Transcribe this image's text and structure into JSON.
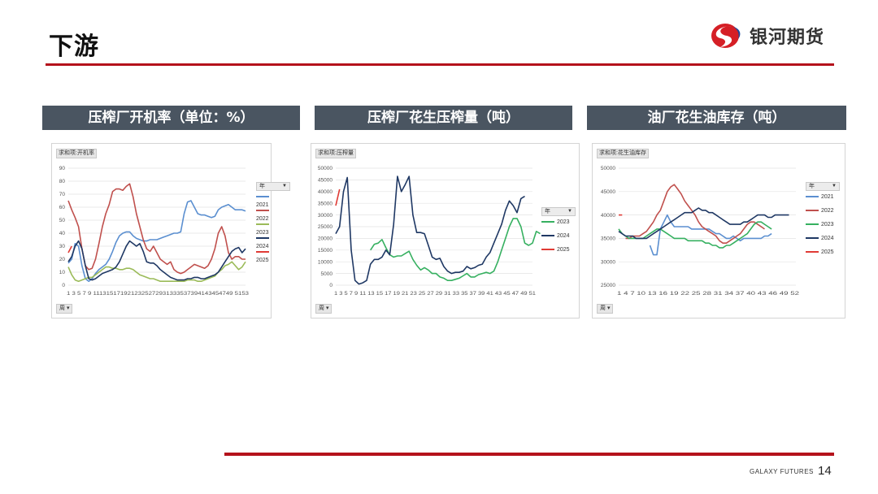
{
  "page": {
    "title": "下游",
    "page_number": "14"
  },
  "brand": {
    "name": "银河期货",
    "footer": "GALAXY FUTURES",
    "mark_colors": [
      "#1c4a9c",
      "#d51f26"
    ]
  },
  "colors": {
    "2021": "#5b8fd0",
    "2022": "#c0504d",
    "2023": "#36b060",
    "2023_light": "#9bbb59",
    "2024": "#1f3864",
    "2025": "#e03b35"
  },
  "panels": [
    {
      "header": "压榨厂开机率（单位：%）"
    },
    {
      "header": "压榨厂花生压榨量（吨）"
    },
    {
      "header": "油厂花生油库存（吨）"
    }
  ],
  "chart_data": [
    {
      "type": "line",
      "field_tag": "求和项:开机率",
      "axis_button": "周",
      "legend_title": "年",
      "ylim": [
        0,
        90
      ],
      "y_ticks": [
        "0",
        "10",
        "20",
        "30",
        "40",
        "50",
        "60",
        "70",
        "80",
        "90"
      ],
      "x_ticks": "1 3 5 7 9 1113151719212325272931333537394143454749 5153",
      "series": [
        {
          "name": "2021",
          "color": "#5b8fd0",
          "start": 1,
          "values": [
            17,
            20,
            32,
            30,
            15,
            5,
            3,
            5,
            9,
            12,
            14,
            16,
            20,
            26,
            33,
            38,
            40,
            41,
            41,
            38,
            36,
            35,
            34,
            34,
            35,
            35,
            35,
            36,
            37,
            38,
            39,
            40,
            40,
            41,
            55,
            64,
            65,
            60,
            55,
            54,
            54,
            53,
            52,
            53,
            58,
            60,
            61,
            62,
            60,
            58,
            58,
            58,
            57
          ]
        },
        {
          "name": "2022",
          "color": "#c0504d",
          "start": 1,
          "values": [
            65,
            58,
            52,
            45,
            28,
            15,
            12,
            13,
            20,
            32,
            45,
            55,
            62,
            72,
            74,
            74,
            73,
            76,
            78,
            68,
            55,
            45,
            35,
            28,
            26,
            30,
            25,
            20,
            18,
            16,
            18,
            12,
            10,
            9,
            10,
            12,
            14,
            16,
            15,
            14,
            13,
            15,
            20,
            28,
            40,
            45,
            38,
            25,
            20,
            22,
            22,
            20,
            20
          ]
        },
        {
          "name": "2023",
          "color": "#9bbb59",
          "start": 1,
          "values": [
            14,
            8,
            4,
            3,
            4,
            5,
            6,
            6,
            8,
            10,
            12,
            14,
            14,
            13,
            13,
            12,
            12,
            13,
            13,
            12,
            10,
            8,
            7,
            6,
            5,
            5,
            4,
            3,
            3,
            3,
            3,
            3,
            3,
            3,
            3,
            4,
            4,
            4,
            3,
            3,
            4,
            5,
            6,
            7,
            10,
            12,
            15,
            16,
            18,
            15,
            12,
            14,
            18
          ]
        },
        {
          "name": "2024",
          "color": "#1f3864",
          "start": 1,
          "values": [
            18,
            22,
            30,
            34,
            28,
            15,
            5,
            4,
            5,
            7,
            9,
            10,
            11,
            12,
            14,
            18,
            24,
            30,
            34,
            32,
            30,
            32,
            26,
            18,
            17,
            17,
            15,
            12,
            10,
            8,
            6,
            5,
            4,
            4,
            4,
            5,
            5,
            6,
            6,
            5,
            5,
            6,
            7,
            8,
            10,
            14,
            18,
            22,
            26,
            28,
            29,
            25,
            28
          ]
        },
        {
          "name": "2025",
          "color": "#e03b35",
          "start": 1,
          "values": [
            25,
            30
          ]
        }
      ]
    },
    {
      "type": "line",
      "field_tag": "求和项:压榨量",
      "axis_button": "周",
      "legend_title": "年",
      "ylim": [
        0,
        50000
      ],
      "y_ticks": [
        "0",
        "5000",
        "10000",
        "15000",
        "20000",
        "25000",
        "30000",
        "35000",
        "40000",
        "45000",
        "50000"
      ],
      "x_ticks": "1 3 5 7 9 11 13 15 17 19 21 23 25 27 29 31 33 35 37 39 41 43 45 47 49 51",
      "series": [
        {
          "name": "2023",
          "color": "#36b060",
          "start": 10,
          "values": [
            15000,
            17500,
            18000,
            19500,
            16000,
            13000,
            12000,
            12500,
            12500,
            13500,
            14500,
            11000,
            8500,
            6500,
            7500,
            6500,
            5000,
            5000,
            3500,
            3000,
            2000,
            2000,
            2500,
            3000,
            4000,
            5000,
            3500,
            3500,
            4500,
            5000,
            5500,
            5000,
            6000,
            10000,
            15000,
            20000,
            25000,
            28500,
            28500,
            25000,
            18000,
            17000,
            18000,
            23000,
            22000
          ]
        },
        {
          "name": "2024",
          "color": "#1f3864",
          "start": 1,
          "values": [
            22000,
            25000,
            40000,
            46000,
            15000,
            2000,
            500,
            1000,
            2000,
            9000,
            11000,
            11000,
            12000,
            15000,
            13000,
            26000,
            46500,
            40000,
            43000,
            46500,
            30000,
            22500,
            22500,
            22000,
            17000,
            12000,
            11000,
            11500,
            8000,
            6000,
            5000,
            5500,
            5500,
            6000,
            8000,
            7000,
            7500,
            8500,
            9000,
            12000,
            14000,
            18000,
            22000,
            26000,
            32000,
            36000,
            34000,
            31000,
            37000,
            38000
          ]
        },
        {
          "name": "2025",
          "color": "#e03b35",
          "start": 1,
          "values": [
            34000,
            41000
          ]
        }
      ]
    },
    {
      "type": "line",
      "field_tag": "求和项:花生油库存",
      "axis_button": "周",
      "legend_title": "年",
      "ylim": [
        25000,
        50000
      ],
      "y_ticks": [
        "25000",
        "30000",
        "35000",
        "40000",
        "45000",
        "50000"
      ],
      "x_ticks": "1 4 7 10 13 16 19 22 25 28 31 34 37 40 43 46 49 52",
      "series": [
        {
          "name": "2021",
          "color": "#5b8fd0",
          "start": 10,
          "values": [
            33500,
            31500,
            31500,
            37000,
            38500,
            40000,
            38500,
            37500,
            37500,
            37500,
            37500,
            37500,
            37000,
            37000,
            37000,
            37000,
            37000,
            37000,
            36500,
            36000,
            36000,
            35500,
            35000,
            35000,
            35500,
            35000,
            34500,
            35000,
            35000,
            35000,
            35000,
            35000,
            35000,
            35500,
            35500,
            36000
          ]
        },
        {
          "name": "2022",
          "color": "#c0504d",
          "start": 3,
          "values": [
            35000,
            35000,
            35500,
            35500,
            35500,
            36000,
            36500,
            37500,
            38500,
            40000,
            41000,
            43000,
            45000,
            46000,
            46500,
            45500,
            44500,
            43000,
            42000,
            41000,
            40000,
            38500,
            37500,
            37000,
            36500,
            36000,
            35500,
            34500,
            34000,
            34000,
            34500,
            35000,
            35500,
            36000,
            37000,
            38000,
            38500,
            38500,
            38000,
            37500,
            37000
          ]
        },
        {
          "name": "2023",
          "color": "#36b060",
          "start": 1,
          "values": [
            37000,
            36000,
            35500,
            35000,
            35000,
            35000,
            35000,
            35000,
            35500,
            36000,
            36500,
            37000,
            37000,
            36500,
            36000,
            35500,
            35000,
            35000,
            35000,
            35000,
            34500,
            34500,
            34500,
            34500,
            34500,
            34000,
            34000,
            33500,
            33500,
            33000,
            33000,
            33500,
            33500,
            34000,
            34500,
            35000,
            35500,
            36000,
            37000,
            38000,
            38500,
            38500,
            38000,
            37500,
            37000
          ]
        },
        {
          "name": "2024",
          "color": "#1f3864",
          "start": 1,
          "values": [
            36500,
            36000,
            35500,
            35500,
            35500,
            35000,
            35000,
            35000,
            35000,
            35500,
            36000,
            36500,
            37000,
            37500,
            38000,
            38500,
            39000,
            39500,
            40000,
            40500,
            40500,
            40500,
            41000,
            41500,
            41000,
            41000,
            40500,
            40500,
            40000,
            39500,
            39000,
            38500,
            38000,
            38000,
            38000,
            38000,
            38500,
            38500,
            39000,
            39500,
            40000,
            40000,
            40000,
            39500,
            39500,
            40000,
            40000,
            40000,
            40000,
            40000
          ]
        },
        {
          "name": "2025",
          "color": "#e03b35",
          "start": 1,
          "values": [
            40000,
            40000
          ]
        }
      ]
    }
  ]
}
